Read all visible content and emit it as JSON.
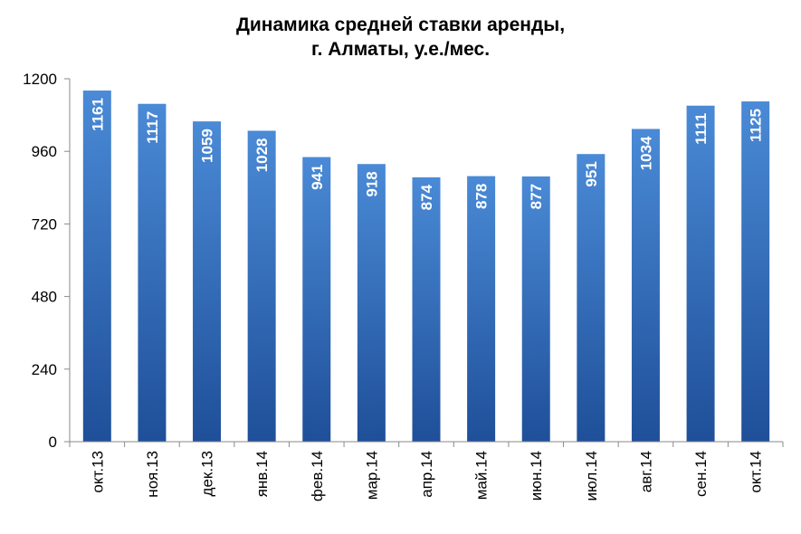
{
  "chart_data": {
    "type": "bar",
    "title_line1": "Динамика средней ставки аренды,",
    "title_line2": "г. Алматы, у.е./мес.",
    "categories": [
      "окт.13",
      "ноя.13",
      "дек.13",
      "янв.14",
      "фев.14",
      "мар.14",
      "апр.14",
      "май.14",
      "июн.14",
      "июл.14",
      "авг.14",
      "сен.14",
      "окт.14"
    ],
    "values": [
      1161,
      1117,
      1059,
      1028,
      941,
      918,
      874,
      878,
      877,
      951,
      1034,
      1111,
      1125
    ],
    "data_labels": [
      "1161",
      "1117",
      "1059",
      "1028",
      "941",
      "918",
      "874",
      "878",
      "877",
      "951",
      "1034",
      "1111",
      "1125"
    ],
    "yticks": [
      "0",
      "240",
      "480",
      "720",
      "960",
      "1200"
    ],
    "ylim": [
      0,
      1200
    ],
    "xlabel": "",
    "ylabel": "",
    "grid": false,
    "legend": false,
    "bar_color_top": "#4a8ad6",
    "bar_color_bottom": "#1f4f99",
    "axis_color": "#8a8a8a"
  }
}
